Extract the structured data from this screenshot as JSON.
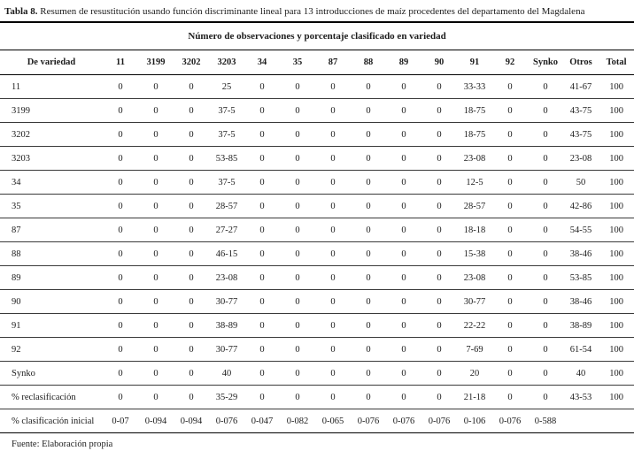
{
  "title": {
    "label": "Tabla 8.",
    "text": " Resumen de resustitución usando función discriminante lineal para 13 introducciones de maíz procedentes del departamento del Magdalena"
  },
  "table": {
    "span_header": "Número de observaciones y porcentaje clasificado en variedad",
    "columns": [
      "De variedad",
      "11",
      "3199",
      "3202",
      "3203",
      "34",
      "35",
      "87",
      "88",
      "89",
      "90",
      "91",
      "92",
      "Synko",
      "Otros",
      "Total"
    ],
    "rows": [
      {
        "label": "11",
        "values": [
          "0",
          "0",
          "0",
          "25",
          "0",
          "0",
          "0",
          "0",
          "0",
          "0",
          "33-33",
          "0",
          "0",
          "41-67",
          "100"
        ]
      },
      {
        "label": "3199",
        "values": [
          "0",
          "0",
          "0",
          "37-5",
          "0",
          "0",
          "0",
          "0",
          "0",
          "0",
          "18-75",
          "0",
          "0",
          "43-75",
          "100"
        ]
      },
      {
        "label": "3202",
        "values": [
          "0",
          "0",
          "0",
          "37-5",
          "0",
          "0",
          "0",
          "0",
          "0",
          "0",
          "18-75",
          "0",
          "0",
          "43-75",
          "100"
        ]
      },
      {
        "label": "3203",
        "values": [
          "0",
          "0",
          "0",
          "53-85",
          "0",
          "0",
          "0",
          "0",
          "0",
          "0",
          "23-08",
          "0",
          "0",
          "23-08",
          "100"
        ]
      },
      {
        "label": "34",
        "values": [
          "0",
          "0",
          "0",
          "37-5",
          "0",
          "0",
          "0",
          "0",
          "0",
          "0",
          "12-5",
          "0",
          "0",
          "50",
          "100"
        ]
      },
      {
        "label": "35",
        "values": [
          "0",
          "0",
          "0",
          "28-57",
          "0",
          "0",
          "0",
          "0",
          "0",
          "0",
          "28-57",
          "0",
          "0",
          "42-86",
          "100"
        ]
      },
      {
        "label": "87",
        "values": [
          "0",
          "0",
          "0",
          "27-27",
          "0",
          "0",
          "0",
          "0",
          "0",
          "0",
          "18-18",
          "0",
          "0",
          "54-55",
          "100"
        ]
      },
      {
        "label": "88",
        "values": [
          "0",
          "0",
          "0",
          "46-15",
          "0",
          "0",
          "0",
          "0",
          "0",
          "0",
          "15-38",
          "0",
          "0",
          "38-46",
          "100"
        ]
      },
      {
        "label": "89",
        "values": [
          "0",
          "0",
          "0",
          "23-08",
          "0",
          "0",
          "0",
          "0",
          "0",
          "0",
          "23-08",
          "0",
          "0",
          "53-85",
          "100"
        ]
      },
      {
        "label": "90",
        "values": [
          "0",
          "0",
          "0",
          "30-77",
          "0",
          "0",
          "0",
          "0",
          "0",
          "0",
          "30-77",
          "0",
          "0",
          "38-46",
          "100"
        ]
      },
      {
        "label": "91",
        "values": [
          "0",
          "0",
          "0",
          "38-89",
          "0",
          "0",
          "0",
          "0",
          "0",
          "0",
          "22-22",
          "0",
          "0",
          "38-89",
          "100"
        ]
      },
      {
        "label": "92",
        "values": [
          "0",
          "0",
          "0",
          "30-77",
          "0",
          "0",
          "0",
          "0",
          "0",
          "0",
          "7-69",
          "0",
          "0",
          "61-54",
          "100"
        ]
      },
      {
        "label": "Synko",
        "values": [
          "0",
          "0",
          "0",
          "40",
          "0",
          "0",
          "0",
          "0",
          "0",
          "0",
          "20",
          "0",
          "0",
          "40",
          "100"
        ]
      },
      {
        "label": "% reclasificación",
        "values": [
          "0",
          "0",
          "0",
          "35-29",
          "0",
          "0",
          "0",
          "0",
          "0",
          "0",
          "21-18",
          "0",
          "0",
          "43-53",
          "100"
        ]
      },
      {
        "label": "% clasificación inicial",
        "values": [
          "0-07",
          "0-094",
          "0-094",
          "0-076",
          "0-047",
          "0-082",
          "0-065",
          "0-076",
          "0-076",
          "0-076",
          "0-106",
          "0-076",
          "0-588",
          "",
          ""
        ]
      }
    ]
  },
  "footer": {
    "source": "Fuente: Elaboración propia"
  }
}
